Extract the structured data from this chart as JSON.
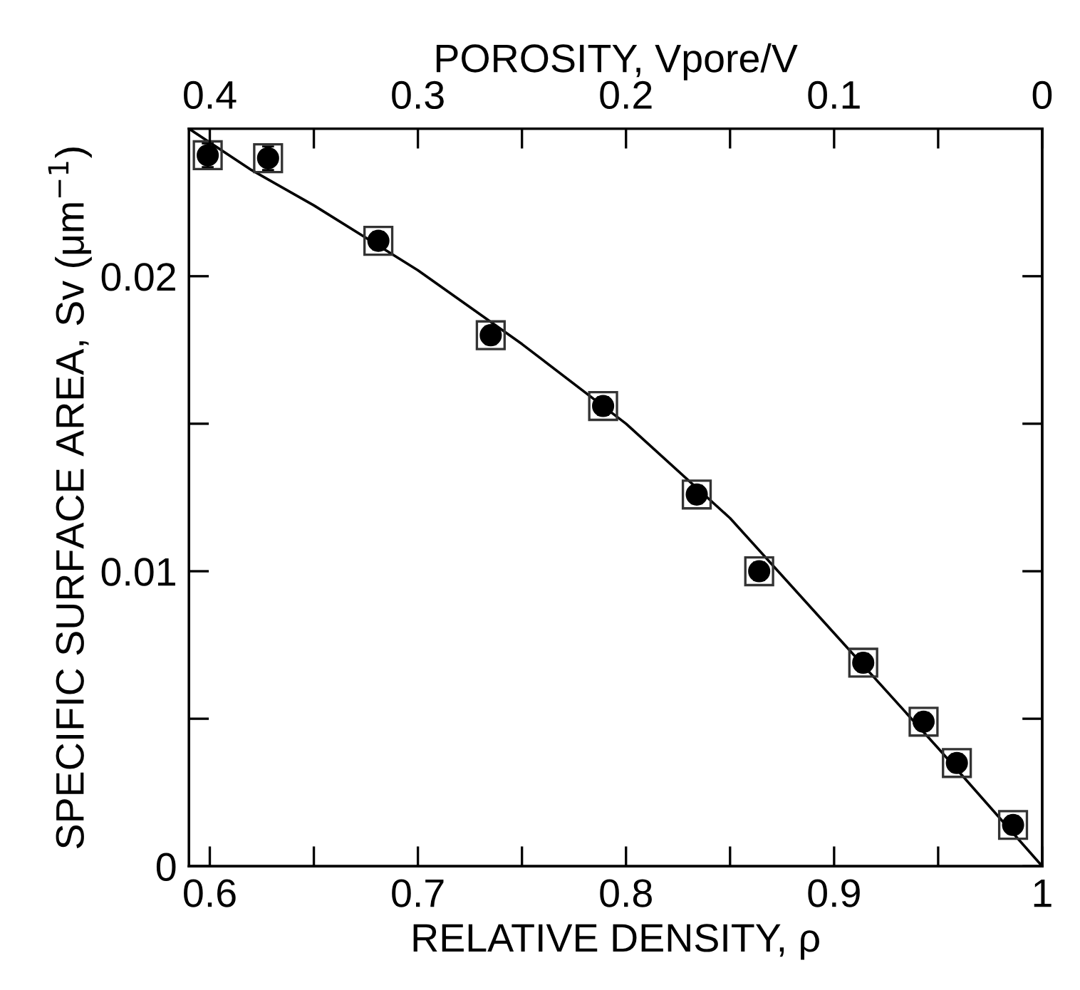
{
  "chart_data": {
    "type": "scatter",
    "xlabel": "RELATIVE DENSITY, ρ",
    "ylabel": "SPECIFIC SURFACE AREA, Sv (μm$^{−1}$)",
    "x2label": "POROSITY, Vpore/V",
    "xlim": [
      0.59,
      1.0
    ],
    "xticks": [
      0.6,
      {
        "value": 0.65,
        "label": null
      },
      0.7,
      {
        "value": 0.75,
        "label": null
      },
      0.8,
      {
        "value": 0.85,
        "label": null
      },
      0.9,
      {
        "value": 0.95,
        "label": null
      },
      1
    ],
    "x2lim": [
      0.41,
      0.0
    ],
    "x2ticks": [
      0.4,
      {
        "value": 0.35,
        "label": null
      },
      0.3,
      {
        "value": 0.25,
        "label": null
      },
      0.2,
      {
        "value": 0.15,
        "label": null
      },
      0.1,
      {
        "value": 0.05,
        "label": null
      },
      0
    ],
    "ylim": [
      0,
      0.025
    ],
    "yticks": [
      0,
      {
        "value": 0.005,
        "label": null
      },
      0.01,
      {
        "value": 0.015,
        "label": null
      },
      0.02
    ],
    "grid": false,
    "legend": false,
    "series": [
      {
        "marker": "square",
        "color": "#333333",
        "x": [
          0.599,
          0.628,
          0.681,
          0.735,
          0.789,
          0.834,
          0.864,
          0.914,
          0.943,
          0.959,
          0.986
        ],
        "values": [
          0.0241,
          0.024,
          0.0212,
          0.018,
          0.0156,
          0.0126,
          0.01,
          0.0069,
          0.0049,
          0.0035,
          0.0014
        ]
      },
      {
        "marker": "circle",
        "color": "#000000",
        "x": [
          0.599,
          0.628,
          0.681,
          0.735,
          0.789,
          0.834,
          0.864,
          0.914,
          0.943,
          0.959,
          0.986
        ],
        "values": [
          0.0241,
          0.024,
          0.0212,
          0.018,
          0.0156,
          0.0126,
          0.01,
          0.0069,
          0.0049,
          0.0035,
          0.0014
        ],
        "errors": [
          0.0004,
          0.0004,
          0.0003,
          0.0003,
          0.0003,
          0.0003,
          0.0003,
          0.0003,
          0.0003,
          0.0003,
          0.0003
        ],
        "xerrors": [
          0.003,
          0.003,
          0.004,
          0.003,
          0.003,
          0.003,
          0.003,
          0.003,
          0.003,
          0.003,
          0.003
        ]
      },
      {
        "type": "line",
        "color": "#000000",
        "line_style": "solid",
        "x": [
          0.59,
          0.62,
          0.65,
          0.7,
          0.75,
          0.8,
          0.85,
          0.9,
          0.95,
          1.0
        ],
        "values": [
          0.025,
          0.0236,
          0.0224,
          0.0202,
          0.0177,
          0.015,
          0.0118,
          0.0079,
          0.004,
          0.0
        ]
      }
    ]
  }
}
